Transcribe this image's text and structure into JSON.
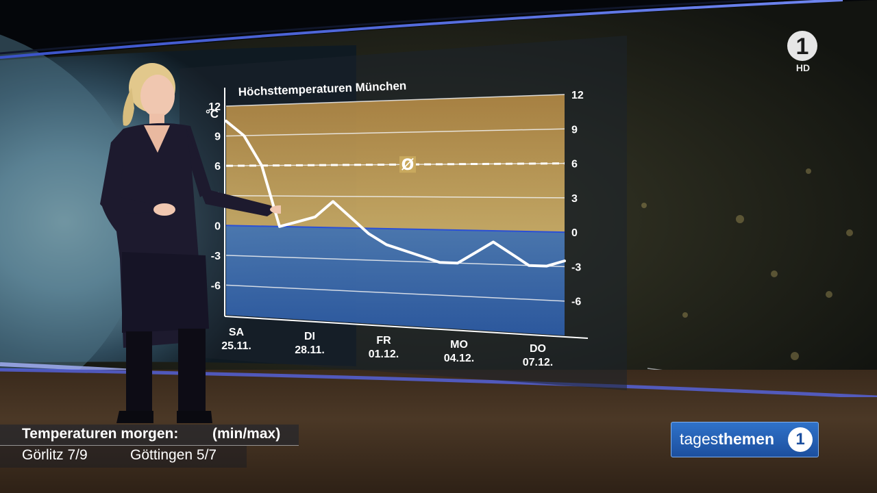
{
  "broadcast": {
    "channel_logo_text": "1",
    "hd_label": "HD",
    "show_logo": {
      "light": "tages",
      "bold": "themen",
      "badge": "1"
    }
  },
  "lower_third": {
    "title": "Temperaturen morgen:",
    "unit": "(min/max)",
    "cities": [
      {
        "text": "Görlitz 7/9"
      },
      {
        "text": "Göttingen 5/7"
      }
    ]
  },
  "chart_data": {
    "type": "line",
    "title": "Höchsttemperaturen München",
    "ylabel": "°C",
    "ylim": [
      -9,
      12
    ],
    "yticks": [
      12,
      9,
      6,
      3,
      0,
      -3,
      -6
    ],
    "x_tick_labels": [
      {
        "day": "SA",
        "date": "25.11."
      },
      {
        "day": "DI",
        "date": "28.11."
      },
      {
        "day": "FR",
        "date": "01.12."
      },
      {
        "day": "MO",
        "date": "04.12."
      },
      {
        "day": "DO",
        "date": "07.12."
      }
    ],
    "average": {
      "value": 6,
      "symbol": "Ø"
    },
    "series": [
      {
        "values": [
          10.5,
          9.0,
          6.0,
          0.0,
          0.5,
          1.0,
          2.5,
          1.0,
          -0.5,
          -1.5,
          -2.0,
          -2.5,
          -3.0,
          -3.0,
          -2.0,
          -1.0,
          -2.0,
          -3.0,
          -3.0,
          -2.5
        ]
      }
    ],
    "shading": {
      "warm_color": "#c49a4e",
      "cold_color": "#3f6fb4",
      "zero_line_color": "#2a4fd6"
    }
  }
}
